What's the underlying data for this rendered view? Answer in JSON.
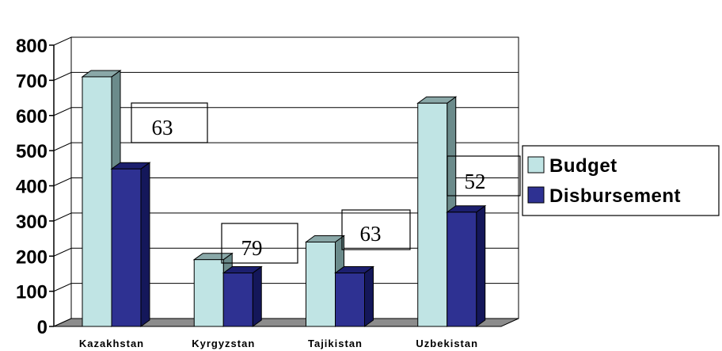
{
  "chart_data": {
    "type": "bar",
    "categories": [
      "Kazakhstan",
      "Kyrgyzstan",
      "Tajikistan",
      "Uzbekistan"
    ],
    "series": [
      {
        "name": "Budget",
        "values": [
          710,
          190,
          240,
          635
        ],
        "color": "#c0e4e4",
        "side_color": "#6b8b8b",
        "top_color": "#8aa8a8"
      },
      {
        "name": "Disbursement",
        "values": [
          448,
          152,
          152,
          325
        ],
        "color": "#2e3192",
        "side_color": "#14175a",
        "top_color": "#1c1f6e"
      }
    ],
    "annotations": [
      {
        "category": "Kazakhstan",
        "text": "63"
      },
      {
        "category": "Kyrgyzstan",
        "text": "79"
      },
      {
        "category": "Tajikistan",
        "text": "63"
      },
      {
        "category": "Uzbekistan",
        "text": "52"
      }
    ],
    "ylim": [
      0,
      800
    ],
    "yticks": [
      "0",
      "100",
      "200",
      "300",
      "400",
      "500",
      "600",
      "700",
      "800"
    ],
    "grid": true,
    "legend_position": "right",
    "title": "",
    "xlabel": "",
    "ylabel": ""
  }
}
